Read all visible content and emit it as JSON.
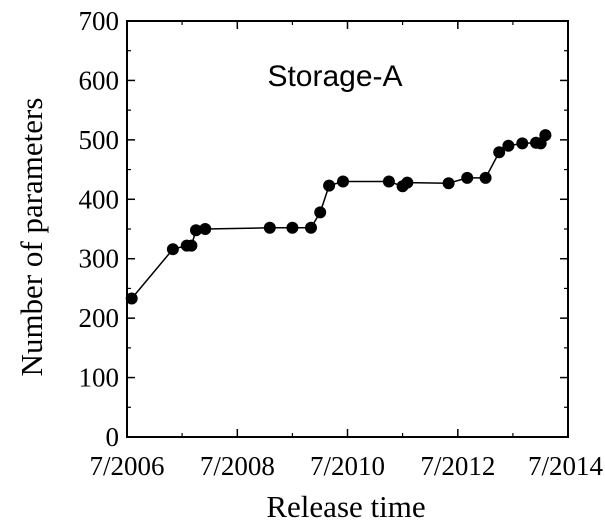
{
  "chart_data": {
    "type": "line",
    "title": "",
    "annotation": "Storage-A",
    "xlabel": "Release time",
    "ylabel": "Number of parameters",
    "ylim": [
      0,
      700
    ],
    "yticks": [
      "0",
      "100",
      "200",
      "300",
      "400",
      "500",
      "600",
      "700"
    ],
    "xticks": [
      "7/2006",
      "7/2008",
      "7/2010",
      "7/2012",
      "7/2014"
    ],
    "grid": false,
    "marker": "filled-circle",
    "color": "#000000",
    "series": [
      {
        "points": [
          {
            "x": "2006-08",
            "y": 233
          },
          {
            "x": "2007-05",
            "y": 316
          },
          {
            "x": "2007-08",
            "y": 322
          },
          {
            "x": "2007-09",
            "y": 322
          },
          {
            "x": "2007-10",
            "y": 348
          },
          {
            "x": "2007-12",
            "y": 350
          },
          {
            "x": "2009-02",
            "y": 352
          },
          {
            "x": "2009-07",
            "y": 352
          },
          {
            "x": "2009-11",
            "y": 352
          },
          {
            "x": "2010-01",
            "y": 378
          },
          {
            "x": "2010-03",
            "y": 423
          },
          {
            "x": "2010-06",
            "y": 430
          },
          {
            "x": "2011-04",
            "y": 430
          },
          {
            "x": "2011-07",
            "y": 422
          },
          {
            "x": "2011-08",
            "y": 428
          },
          {
            "x": "2012-05",
            "y": 427
          },
          {
            "x": "2012-09",
            "y": 436
          },
          {
            "x": "2013-01",
            "y": 436
          },
          {
            "x": "2013-04",
            "y": 479
          },
          {
            "x": "2013-06",
            "y": 490
          },
          {
            "x": "2013-09",
            "y": 494
          },
          {
            "x": "2013-12",
            "y": 495
          },
          {
            "x": "2014-01",
            "y": 494
          },
          {
            "x": "2014-02",
            "y": 508
          }
        ]
      }
    ]
  }
}
